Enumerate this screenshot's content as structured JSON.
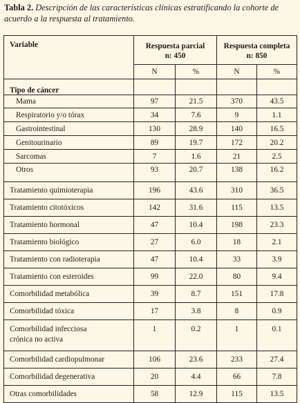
{
  "caption": {
    "label": "Tabla 2.",
    "text": "Descripción de las características clínicas estratificando la cohorte de acuerdo a la respuesta al tratamiento."
  },
  "table": {
    "header_variable": "Variable",
    "group1_line1": "Respuesta parcial",
    "group1_line2": "n: 450",
    "group2_line1": "Respuesta completa",
    "group2_line2": "n: 850",
    "col_n": "N",
    "col_pct": "%",
    "section_title": "Tipo de cáncer",
    "cancer_rows": [
      {
        "label": "Mama",
        "n1": "97",
        "p1": "21.5",
        "n2": "370",
        "p2": "43.5"
      },
      {
        "label": "Respiratorio y/o tórax",
        "n1": "34",
        "p1": "7.6",
        "n2": "9",
        "p2": "1.1"
      },
      {
        "label": "Gastrointestinal",
        "n1": "130",
        "p1": "28.9",
        "n2": "140",
        "p2": "16.5"
      },
      {
        "label": "Genitourinario",
        "n1": "89",
        "p1": "19.7",
        "n2": "172",
        "p2": "20.2"
      },
      {
        "label": "Sarcomas",
        "n1": "7",
        "p1": "1.6",
        "n2": "21",
        "p2": "2.5"
      },
      {
        "label": "Otros",
        "n1": "93",
        "p1": "20.7",
        "n2": "138",
        "p2": "16.2"
      }
    ],
    "rows": [
      {
        "label": "Tratamiento quimioterapia",
        "n1": "196",
        "p1": "43.6",
        "n2": "310",
        "p2": "36.5"
      },
      {
        "label": "Tratamiento citotóxicos",
        "n1": "142",
        "p1": "31.6",
        "n2": "115",
        "p2": "13.5"
      },
      {
        "label": "Tratamiento hormonal",
        "n1": "47",
        "p1": "10.4",
        "n2": "198",
        "p2": "23.3"
      },
      {
        "label": "Tratamiento biológico",
        "n1": "27",
        "p1": "6.0",
        "n2": "18",
        "p2": "2.1"
      },
      {
        "label": "Tratamiento con radioterapia",
        "n1": "47",
        "p1": "10.4",
        "n2": "33",
        "p2": "3.9"
      },
      {
        "label": "Tratamiento con esteroides",
        "n1": "99",
        "p1": "22.0",
        "n2": "80",
        "p2": "9.4"
      },
      {
        "label": "Comorbilidad metabólica",
        "n1": "39",
        "p1": "8.7",
        "n2": "151",
        "p2": "17.8"
      },
      {
        "label": "Comorbilidad tóxica",
        "n1": "17",
        "p1": "3.8",
        "n2": "8",
        "p2": "0.9"
      },
      {
        "label_line1": "Comorbilidad infecciosa",
        "label_line2": "crónica no activa",
        "n1": "1",
        "p1": "0.2",
        "n2": "1",
        "p2": "0.1"
      },
      {
        "label": "Comorbilidad cardiopulmonar",
        "n1": "106",
        "p1": "23.6",
        "n2": "233",
        "p2": "27.4"
      },
      {
        "label": "Comorbilidad degenerativa",
        "n1": "20",
        "p1": "4.4",
        "n2": "66",
        "p2": "7.8"
      },
      {
        "label": "Otras comorbilidades",
        "n1": "58",
        "p1": "12.9",
        "n2": "115",
        "p2": "13.5"
      }
    ]
  }
}
